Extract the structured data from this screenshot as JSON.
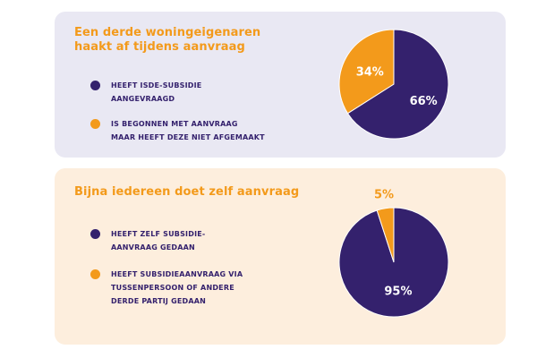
{
  "colors": {
    "primary": "#34216d",
    "accent": "#f39a1b"
  },
  "cards": [
    {
      "title_lines": [
        "Een derde woningeigenaren",
        "haakt af tijdens aanvraag"
      ],
      "legend": [
        {
          "lines": [
            "HEEFT ISDE-SUBSIDIE",
            "AANGEVRAAGD"
          ]
        },
        {
          "lines": [
            "IS BEGONNEN MET AANVRAAG",
            "MAAR HEEFT DEZE NIET AFGEMAAKT"
          ]
        }
      ]
    },
    {
      "title_lines": [
        "Bijna iedereen doet zelf aanvraag"
      ],
      "legend": [
        {
          "lines": [
            "HEEFT ZELF SUBSIDIE-",
            "AANVRAAG GEDAAN"
          ]
        },
        {
          "lines": [
            "HEEFT SUBSIDIEAANVRAAG  VIA",
            "TUSSENPERSOON OF ANDERE",
            "DERDE PARTIJ GEDAAN"
          ]
        }
      ]
    }
  ],
  "chart_data": [
    {
      "type": "pie",
      "slices": [
        {
          "label": "HEEFT ISDE-SUBSIDIE AANGEVRAAGD",
          "value": 66,
          "display": "66%",
          "color": "#34216d"
        },
        {
          "label": "IS BEGONNEN MET AANVRAAG MAAR HEEFT DEZE NIET AFGEMAAKT",
          "value": 34,
          "display": "34%",
          "color": "#f39a1b"
        }
      ]
    },
    {
      "type": "pie",
      "slices": [
        {
          "label": "HEEFT ZELF SUBSIDIE-AANVRAAG GEDAAN",
          "value": 95,
          "display": "95%",
          "color": "#34216d"
        },
        {
          "label": "HEEFT SUBSIDIEAANVRAAG VIA TUSSENPERSOON OF ANDERE DERDE PARTIJ GEDAAN",
          "value": 5,
          "display": "5%",
          "color": "#f39a1b"
        }
      ]
    }
  ]
}
